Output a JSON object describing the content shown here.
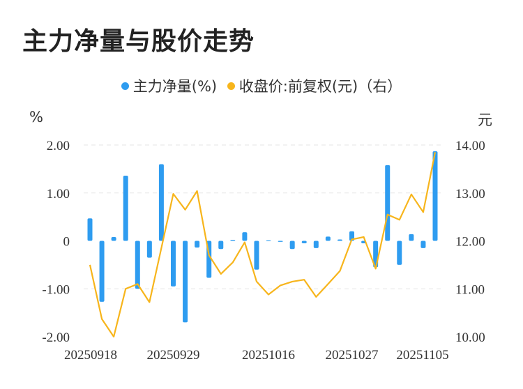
{
  "title": "主力净量与股价走势",
  "legend": {
    "series1": "主力净量(%)",
    "series2": "收盘价:前复权(元)（右）"
  },
  "units": {
    "left": "%",
    "right": "元"
  },
  "colors": {
    "bar": "#2e9cf0",
    "line": "#f7b51c",
    "grid": "#e6e6e6"
  },
  "chart_data": {
    "type": "bar+line",
    "title": "主力净量与股价走势",
    "xlabel": "",
    "ylabel_left": "%",
    "ylabel_right": "元",
    "x_tick_labels": [
      "20250918",
      "20250929",
      "20251016",
      "20251027",
      "20251105"
    ],
    "y_left": {
      "min": -2,
      "max": 2,
      "ticks": [
        "-2.00",
        "-1.00",
        "0",
        "1.00",
        "2.00"
      ]
    },
    "y_right": {
      "min": 10,
      "max": 14,
      "ticks": [
        "10.00",
        "11.00",
        "12.00",
        "13.00",
        "14.00"
      ]
    },
    "grid": true,
    "legend_position": "top",
    "series": [
      {
        "name": "主力净量(%)",
        "type": "bar",
        "axis": "left",
        "values": [
          0.47,
          -1.27,
          0.08,
          1.36,
          -1.0,
          -0.35,
          1.6,
          -0.95,
          -1.7,
          -0.14,
          -0.77,
          -0.17,
          0.02,
          0.18,
          -0.6,
          0.01,
          -0.02,
          -0.17,
          -0.05,
          -0.15,
          0.09,
          0.03,
          0.2,
          -0.05,
          -0.55,
          1.58,
          -0.5,
          0.14,
          -0.15,
          1.87
        ]
      },
      {
        "name": "收盘价:前复权(元)（右）",
        "type": "line",
        "axis": "right",
        "values": [
          11.5,
          10.37,
          10.0,
          11.0,
          11.1,
          10.72,
          11.85,
          12.98,
          12.65,
          13.04,
          11.7,
          11.31,
          11.55,
          11.97,
          11.15,
          10.88,
          11.07,
          11.15,
          11.19,
          10.83,
          11.1,
          11.37,
          12.03,
          12.08,
          11.42,
          12.55,
          12.44,
          12.97,
          12.6,
          13.85
        ]
      }
    ]
  }
}
